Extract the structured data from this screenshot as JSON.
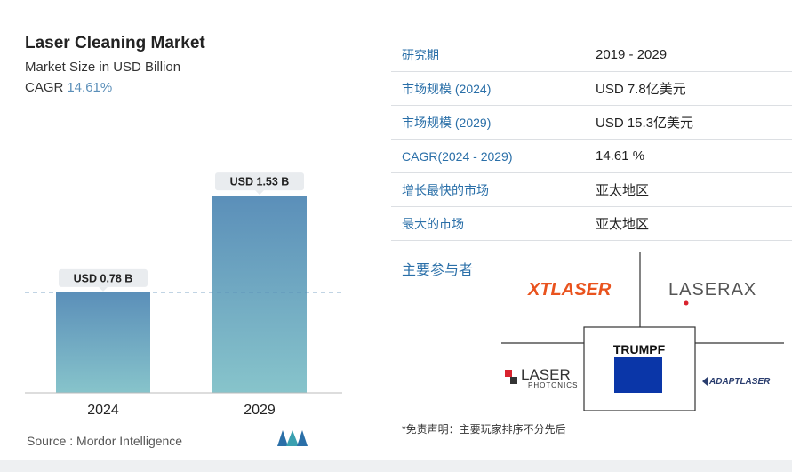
{
  "chart_data": {
    "type": "bar",
    "title": "Laser Cleaning Market",
    "subtitle": "Market Size in USD Billion",
    "cagr_label": "CAGR",
    "cagr_value": "14.61%",
    "categories": [
      "2024",
      "2029"
    ],
    "values": [
      0.78,
      1.53
    ],
    "data_labels": [
      "USD 0.78 B",
      "USD 1.53 B"
    ],
    "ylim": [
      0,
      1.6
    ],
    "grid": false,
    "colors": {
      "bar_top": "#5b8fb9",
      "bar_bottom": "#87c4cb",
      "label_bg": "#e9ecef",
      "dashed_line": "#5b8fb9"
    }
  },
  "source": "Source : Mordor Intelligence",
  "table": [
    {
      "key": "研究期",
      "value": "2019 - 2029"
    },
    {
      "key": "市场规模 (2024)",
      "value": "USD 7.8亿美元"
    },
    {
      "key": "市场规模 (2029)",
      "value": "USD 15.3亿美元"
    },
    {
      "key": "CAGR(2024 - 2029)",
      "value": "14.61 %"
    },
    {
      "key": "增长最快的市场",
      "value": "亚太地区"
    },
    {
      "key": "最大的市场",
      "value": "亚太地区"
    }
  ],
  "players_label": "主要参与者",
  "players": {
    "xt": "XTLASER",
    "laserax": "LASERAX",
    "trumpf": "TRUMPF",
    "laser_photonics_1": "LASER",
    "laser_photonics_2": "PHOTONICS",
    "adapt": "ADAPTLASER"
  },
  "disclaimer": "*免责声明：主要玩家排序不分先后"
}
